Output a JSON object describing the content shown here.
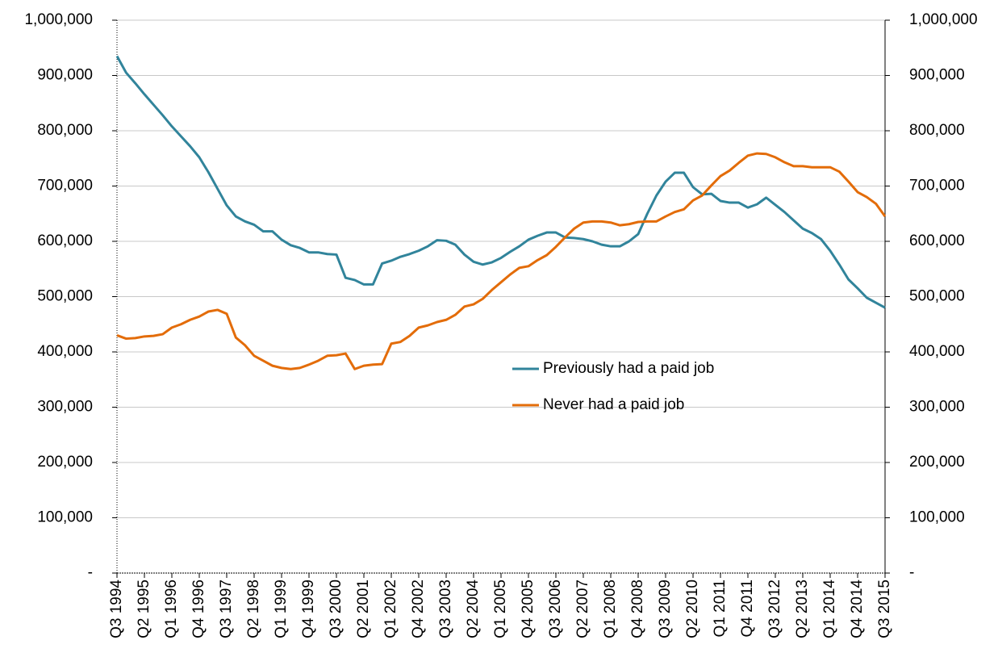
{
  "chart_data": {
    "type": "line",
    "categories": [
      "Q3 1994",
      null,
      null,
      "Q2 1995",
      null,
      null,
      "Q1 1996",
      null,
      null,
      "Q4 1996",
      null,
      null,
      "Q3 1997",
      null,
      null,
      "Q2 1998",
      null,
      null,
      "Q1 1999",
      null,
      null,
      "Q4 1999",
      null,
      null,
      "Q3 2000",
      null,
      null,
      "Q2 2001",
      null,
      null,
      "Q1 2002",
      null,
      null,
      "Q4 2002",
      null,
      null,
      "Q3 2003",
      null,
      null,
      "Q2 2004",
      null,
      null,
      "Q1 2005",
      null,
      null,
      "Q4 2005",
      null,
      null,
      "Q3 2006",
      null,
      null,
      "Q2 2007",
      null,
      null,
      "Q1 2008",
      null,
      null,
      "Q4 2008",
      null,
      null,
      "Q3 2009",
      null,
      null,
      "Q2 2010",
      null,
      null,
      "Q1 2011",
      null,
      null,
      "Q4 2011",
      null,
      null,
      "Q3 2012",
      null,
      null,
      "Q2 2013",
      null,
      null,
      "Q1 2014",
      null,
      null,
      "Q4 2014",
      null,
      null,
      "Q3 2015"
    ],
    "series": [
      {
        "name": "Previously had a paid job",
        "color": "#31849b",
        "values": [
          935000,
          905000,
          886000,
          866000,
          847000,
          828000,
          808000,
          790000,
          772000,
          752000,
          725000,
          695000,
          665000,
          645000,
          636000,
          630000,
          618000,
          618000,
          603000,
          593000,
          588000,
          580000,
          580000,
          577000,
          576000,
          534000,
          530000,
          522000,
          522000,
          560000,
          565000,
          572000,
          577000,
          583000,
          591000,
          602000,
          601000,
          594000,
          576000,
          563000,
          558000,
          562000,
          570000,
          581000,
          591000,
          603000,
          610000,
          616000,
          616000,
          607000,
          606000,
          604000,
          600000,
          594000,
          591000,
          591000,
          600000,
          613000,
          650000,
          683000,
          708000,
          724000,
          724000,
          698000,
          685000,
          686000,
          673000,
          670000,
          670000,
          661000,
          667000,
          679000,
          666000,
          653000,
          638000,
          623000,
          615000,
          604000,
          583000,
          558000,
          531000,
          515000,
          498000,
          489000,
          480000
        ]
      },
      {
        "name": "Never had a paid job",
        "color": "#e36c09",
        "values": [
          430000,
          424000,
          425000,
          428000,
          429000,
          432000,
          444000,
          450000,
          458000,
          464000,
          473000,
          476000,
          469000,
          426000,
          412000,
          393000,
          384000,
          375000,
          371000,
          369000,
          371000,
          377000,
          384000,
          393000,
          394000,
          397000,
          369000,
          375000,
          377000,
          378000,
          415000,
          418000,
          429000,
          444000,
          448000,
          454000,
          458000,
          467000,
          482000,
          486000,
          496000,
          512000,
          526000,
          540000,
          552000,
          555000,
          566000,
          575000,
          590000,
          607000,
          623000,
          634000,
          636000,
          636000,
          634000,
          629000,
          631000,
          635000,
          636000,
          636000,
          645000,
          653000,
          658000,
          674000,
          683000,
          701000,
          718000,
          728000,
          742000,
          755000,
          759000,
          758000,
          752000,
          743000,
          736000,
          736000,
          734000,
          734000,
          734000,
          726000,
          708000,
          689000,
          680000,
          668000,
          645000
        ]
      }
    ],
    "ylim": [
      0,
      1000000
    ],
    "yticks": [
      {
        "value": 0,
        "label": "-"
      },
      {
        "value": 100000,
        "label": "100,000"
      },
      {
        "value": 200000,
        "label": "200,000"
      },
      {
        "value": 300000,
        "label": "300,000"
      },
      {
        "value": 400000,
        "label": "400,000"
      },
      {
        "value": 500000,
        "label": "500,000"
      },
      {
        "value": 600000,
        "label": "600,000"
      },
      {
        "value": 700000,
        "label": "700,000"
      },
      {
        "value": 800000,
        "label": "800,000"
      },
      {
        "value": 900000,
        "label": "900,000"
      },
      {
        "value": 1000000,
        "label": "1,000,000"
      }
    ],
    "y2lim": [
      0,
      1000000
    ],
    "y2ticks": [
      {
        "value": 0,
        "label": "-"
      },
      {
        "value": 100000,
        "label": "100,000"
      },
      {
        "value": 200000,
        "label": "200,000"
      },
      {
        "value": 300000,
        "label": "300,000"
      },
      {
        "value": 400000,
        "label": "400,000"
      },
      {
        "value": 500000,
        "label": "500,000"
      },
      {
        "value": 600000,
        "label": "600,000"
      },
      {
        "value": 700000,
        "label": "700,000"
      },
      {
        "value": 800000,
        "label": "800,000"
      },
      {
        "value": 900000,
        "label": "900,000"
      },
      {
        "value": 1000000,
        "label": "1,000,000"
      }
    ],
    "grid": true
  }
}
